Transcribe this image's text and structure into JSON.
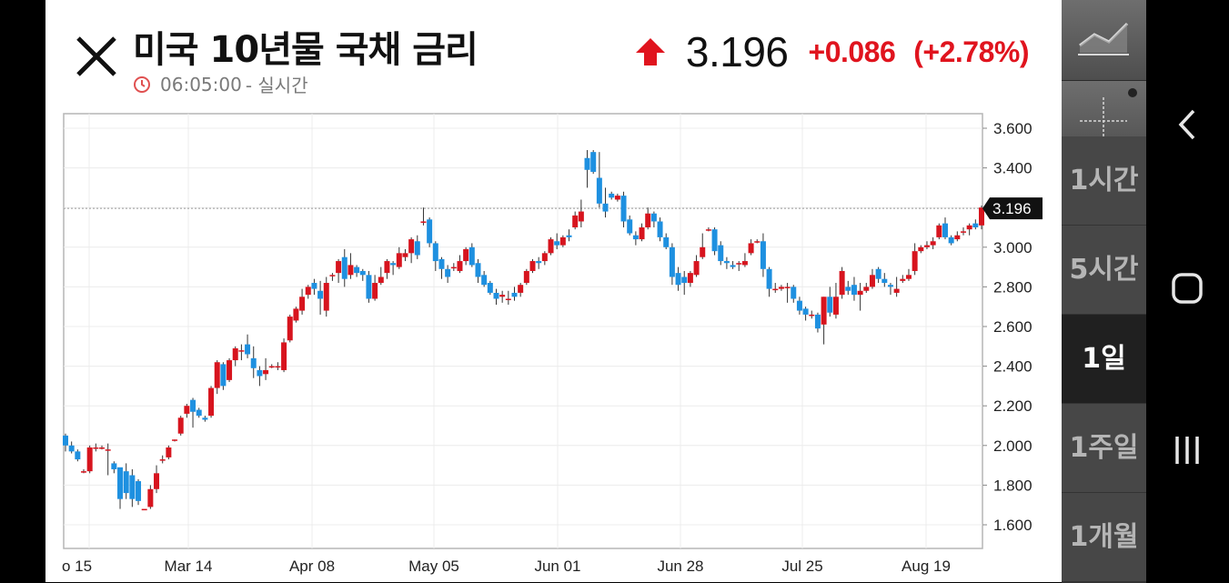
{
  "header": {
    "title": "미국 10년물 국채 금리",
    "time": "06:05:00",
    "time_suffix": "- 실시간",
    "price": "3.196",
    "change": "+0.086",
    "change_pct": "(+2.78%)"
  },
  "colors": {
    "up": "#d7141e",
    "down": "#1e90e0",
    "accent_red": "#e0141e"
  },
  "timeframes": [
    {
      "label": "1시간",
      "active": false
    },
    {
      "label": "5시간",
      "active": false
    },
    {
      "label": "1일",
      "active": true
    },
    {
      "label": "1주일",
      "active": false
    },
    {
      "label": "1개월",
      "active": false
    }
  ],
  "icons": [
    "close-icon",
    "clock-icon",
    "up-arrow-icon",
    "line-chart-icon",
    "crosshair-icon",
    "back-icon",
    "home-icon",
    "recents-icon"
  ],
  "chart_data": {
    "type": "candlestick",
    "y_ticks": [
      "3.600",
      "3.400",
      "3.200",
      "3.000",
      "2.800",
      "2.600",
      "2.400",
      "2.200",
      "2.000",
      "1.800",
      "1.600"
    ],
    "x_ticks": [
      "o 15",
      "Mar 14",
      "Apr 08",
      "May 05",
      "Jun 01",
      "Jun 28",
      "Jul 25",
      "Aug 19"
    ],
    "last_value_label": "3.196",
    "last_value": 3.196,
    "ylim": [
      1.6,
      3.6
    ],
    "candles": [
      [
        2.05,
        2.0,
        1.97,
        2.06
      ],
      [
        2.0,
        1.97,
        1.96,
        2.02
      ],
      [
        1.97,
        1.93,
        1.92,
        1.98
      ],
      [
        1.87,
        1.87,
        1.86,
        1.88
      ],
      [
        1.87,
        1.99,
        1.86,
        2.0
      ],
      [
        1.99,
        1.99,
        1.97,
        2.01
      ],
      [
        1.99,
        1.99,
        1.98,
        2.0
      ],
      [
        1.98,
        1.98,
        1.85,
        2.01
      ],
      [
        1.91,
        1.88,
        1.86,
        1.92
      ],
      [
        1.89,
        1.73,
        1.68,
        1.88
      ],
      [
        1.87,
        1.76,
        1.73,
        1.91
      ],
      [
        1.85,
        1.73,
        1.69,
        1.88
      ],
      [
        1.82,
        1.72,
        1.7,
        1.83
      ],
      [
        1.68,
        1.68,
        1.68,
        1.68
      ],
      [
        1.69,
        1.78,
        1.68,
        1.8
      ],
      [
        1.78,
        1.86,
        1.76,
        1.9
      ],
      [
        1.93,
        1.93,
        1.91,
        1.95
      ],
      [
        1.94,
        1.99,
        1.93,
        2.0
      ],
      [
        2.03,
        2.03,
        2.02,
        2.03
      ],
      [
        2.06,
        2.14,
        2.05,
        2.15
      ],
      [
        2.16,
        2.2,
        2.14,
        2.21
      ],
      [
        2.23,
        2.17,
        2.09,
        2.24
      ],
      [
        2.18,
        2.15,
        2.14,
        2.19
      ],
      [
        2.14,
        2.13,
        2.12,
        2.15
      ],
      [
        2.15,
        2.29,
        2.14,
        2.3
      ],
      [
        2.29,
        2.42,
        2.26,
        2.43
      ],
      [
        2.41,
        2.3,
        2.28,
        2.42
      ],
      [
        2.33,
        2.43,
        2.32,
        2.44
      ],
      [
        2.43,
        2.49,
        2.4,
        2.5
      ],
      [
        2.48,
        2.48,
        2.43,
        2.51
      ],
      [
        2.51,
        2.46,
        2.44,
        2.56
      ],
      [
        2.44,
        2.39,
        2.34,
        2.5
      ],
      [
        2.38,
        2.35,
        2.3,
        2.4
      ],
      [
        2.36,
        2.38,
        2.33,
        2.44
      ],
      [
        2.4,
        2.4,
        2.39,
        2.41
      ],
      [
        2.4,
        2.4,
        2.38,
        2.42
      ],
      [
        2.38,
        2.52,
        2.37,
        2.54
      ],
      [
        2.53,
        2.65,
        2.52,
        2.66
      ],
      [
        2.63,
        2.69,
        2.62,
        2.7
      ],
      [
        2.68,
        2.75,
        2.66,
        2.79
      ],
      [
        2.76,
        2.8,
        2.74,
        2.81
      ],
      [
        2.82,
        2.79,
        2.76,
        2.84
      ],
      [
        2.78,
        2.74,
        2.66,
        2.83
      ],
      [
        2.68,
        2.82,
        2.65,
        2.85
      ],
      [
        2.86,
        2.86,
        2.83,
        2.87
      ],
      [
        2.87,
        2.93,
        2.82,
        2.94
      ],
      [
        2.95,
        2.84,
        2.8,
        2.99
      ],
      [
        2.86,
        2.91,
        2.84,
        2.97
      ],
      [
        2.9,
        2.87,
        2.85,
        2.91
      ],
      [
        2.88,
        2.86,
        2.83,
        2.89
      ],
      [
        2.86,
        2.74,
        2.72,
        2.88
      ],
      [
        2.74,
        2.82,
        2.73,
        2.86
      ],
      [
        2.82,
        2.85,
        2.81,
        2.9
      ],
      [
        2.87,
        2.93,
        2.84,
        2.94
      ],
      [
        2.92,
        2.91,
        2.86,
        2.93
      ],
      [
        2.9,
        2.97,
        2.89,
        3.0
      ],
      [
        2.95,
        2.97,
        2.93,
        2.99
      ],
      [
        2.97,
        3.04,
        2.92,
        3.05
      ],
      [
        3.03,
        2.96,
        2.94,
        3.06
      ],
      [
        3.13,
        3.13,
        3.11,
        3.2
      ],
      [
        3.14,
        3.02,
        3.0,
        3.15
      ],
      [
        3.02,
        2.93,
        2.88,
        3.03
      ],
      [
        2.94,
        2.89,
        2.84,
        2.95
      ],
      [
        2.89,
        2.85,
        2.82,
        2.91
      ],
      [
        2.9,
        2.9,
        2.88,
        2.92
      ],
      [
        2.88,
        2.93,
        2.87,
        2.96
      ],
      [
        2.93,
        2.99,
        2.91,
        3.0
      ],
      [
        3.0,
        2.91,
        2.9,
        3.02
      ],
      [
        2.92,
        2.85,
        2.82,
        2.94
      ],
      [
        2.86,
        2.81,
        2.8,
        2.88
      ],
      [
        2.82,
        2.77,
        2.76,
        2.83
      ],
      [
        2.77,
        2.74,
        2.71,
        2.79
      ],
      [
        2.75,
        2.76,
        2.72,
        2.78
      ],
      [
        2.74,
        2.74,
        2.71,
        2.78
      ],
      [
        2.77,
        2.75,
        2.73,
        2.8
      ],
      [
        2.77,
        2.81,
        2.75,
        2.82
      ],
      [
        2.82,
        2.88,
        2.81,
        2.89
      ],
      [
        2.88,
        2.93,
        2.87,
        2.94
      ],
      [
        2.93,
        2.92,
        2.89,
        2.95
      ],
      [
        2.93,
        2.97,
        2.91,
        2.98
      ],
      [
        2.97,
        3.04,
        2.96,
        3.05
      ],
      [
        3.03,
        3.01,
        2.99,
        3.07
      ],
      [
        3.01,
        3.05,
        3.0,
        3.06
      ],
      [
        3.06,
        3.05,
        3.03,
        3.09
      ],
      [
        3.1,
        3.16,
        3.09,
        3.18
      ],
      [
        3.13,
        3.18,
        3.1,
        3.24
      ],
      [
        3.45,
        3.39,
        3.3,
        3.49
      ],
      [
        3.48,
        3.38,
        3.37,
        3.49
      ],
      [
        3.35,
        3.22,
        3.2,
        3.48
      ],
      [
        3.22,
        3.18,
        3.15,
        3.3
      ],
      [
        3.27,
        3.25,
        3.24,
        3.28
      ],
      [
        3.24,
        3.26,
        3.23,
        3.27
      ],
      [
        3.26,
        3.13,
        3.1,
        3.28
      ],
      [
        3.14,
        3.07,
        3.06,
        3.16
      ],
      [
        3.06,
        3.04,
        3.01,
        3.08
      ],
      [
        3.04,
        3.1,
        3.03,
        3.12
      ],
      [
        3.1,
        3.17,
        3.09,
        3.2
      ],
      [
        3.17,
        3.13,
        3.1,
        3.18
      ],
      [
        3.13,
        3.05,
        3.03,
        3.15
      ],
      [
        3.05,
        3.0,
        2.99,
        3.07
      ],
      [
        3.0,
        2.85,
        2.81,
        3.02
      ],
      [
        2.87,
        2.81,
        2.78,
        2.9
      ],
      [
        2.85,
        2.82,
        2.76,
        2.88
      ],
      [
        2.82,
        2.87,
        2.8,
        2.88
      ],
      [
        2.86,
        2.93,
        2.85,
        2.96
      ],
      [
        2.95,
        3.0,
        2.94,
        3.07
      ],
      [
        3.09,
        3.09,
        3.08,
        3.1
      ],
      [
        3.09,
        2.98,
        2.96,
        3.1
      ],
      [
        3.01,
        2.93,
        2.91,
        3.03
      ],
      [
        2.93,
        2.92,
        2.89,
        2.95
      ],
      [
        2.91,
        2.9,
        2.89,
        2.93
      ],
      [
        2.92,
        2.92,
        2.88,
        2.93
      ],
      [
        2.91,
        2.93,
        2.9,
        2.97
      ],
      [
        2.97,
        3.02,
        2.96,
        3.04
      ],
      [
        3.03,
        3.03,
        3.02,
        3.04
      ],
      [
        3.03,
        2.89,
        2.85,
        3.07
      ],
      [
        2.89,
        2.79,
        2.75,
        2.9
      ],
      [
        2.79,
        2.79,
        2.77,
        2.82
      ],
      [
        2.79,
        2.8,
        2.78,
        2.81
      ],
      [
        2.8,
        2.8,
        2.72,
        2.82
      ],
      [
        2.8,
        2.74,
        2.72,
        2.81
      ],
      [
        2.73,
        2.68,
        2.66,
        2.75
      ],
      [
        2.69,
        2.66,
        2.63,
        2.7
      ],
      [
        2.66,
        2.66,
        2.64,
        2.68
      ],
      [
        2.66,
        2.59,
        2.57,
        2.67
      ],
      [
        2.61,
        2.75,
        2.51,
        2.75
      ],
      [
        2.75,
        2.67,
        2.65,
        2.8
      ],
      [
        2.66,
        2.75,
        2.64,
        2.82
      ],
      [
        2.76,
        2.88,
        2.74,
        2.9
      ],
      [
        2.8,
        2.78,
        2.76,
        2.83
      ],
      [
        2.81,
        2.76,
        2.73,
        2.85
      ],
      [
        2.76,
        2.78,
        2.68,
        2.82
      ],
      [
        2.78,
        2.8,
        2.77,
        2.82
      ],
      [
        2.8,
        2.86,
        2.79,
        2.89
      ],
      [
        2.89,
        2.84,
        2.82,
        2.9
      ],
      [
        2.84,
        2.82,
        2.8,
        2.87
      ],
      [
        2.81,
        2.8,
        2.76,
        2.82
      ],
      [
        2.77,
        2.79,
        2.75,
        2.85
      ],
      [
        2.83,
        2.84,
        2.82,
        2.86
      ],
      [
        2.84,
        2.86,
        2.83,
        2.89
      ],
      [
        2.88,
        2.98,
        2.86,
        3.02
      ],
      [
        2.98,
        3.0,
        2.97,
        3.01
      ],
      [
        3.0,
        3.01,
        2.99,
        3.03
      ],
      [
        3.01,
        3.03,
        2.99,
        3.05
      ],
      [
        3.05,
        3.11,
        3.04,
        3.12
      ],
      [
        3.12,
        3.05,
        3.04,
        3.15
      ],
      [
        3.05,
        3.02,
        3.01,
        3.06
      ],
      [
        3.04,
        3.06,
        3.03,
        3.08
      ],
      [
        3.08,
        3.08,
        3.06,
        3.1
      ],
      [
        3.09,
        3.11,
        3.06,
        3.12
      ],
      [
        3.12,
        3.1,
        3.09,
        3.14
      ],
      [
        3.11,
        3.2,
        3.09,
        3.21
      ]
    ]
  }
}
